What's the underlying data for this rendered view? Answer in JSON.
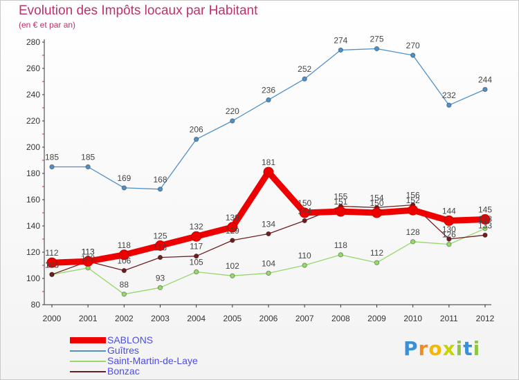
{
  "header": {
    "title": "Evolution des Impôts locaux par Habitant",
    "subtitle": "(en € et par an)"
  },
  "brand": {
    "letters": [
      "P",
      "r",
      "o",
      "x",
      "i",
      "t",
      "i"
    ]
  },
  "chart_data": {
    "type": "line",
    "title": "Evolution des Impôts locaux par Habitant",
    "subtitle": "(en € et par an)",
    "x": [
      "2000",
      "2001",
      "2002",
      "2003",
      "2004",
      "2005",
      "2006",
      "2007",
      "2008",
      "2009",
      "2010",
      "2011",
      "2012"
    ],
    "ylim": [
      80,
      280
    ],
    "yticks": [
      80,
      100,
      120,
      140,
      160,
      180,
      200,
      220,
      240,
      260,
      280
    ],
    "grid": false,
    "legend_position": "bottom-left",
    "series": [
      {
        "name": "SABLONS",
        "color": "#ee0000",
        "values": [
          112,
          113,
          118,
          125,
          132,
          139,
          181,
          150,
          151,
          150,
          152,
          144,
          145
        ]
      },
      {
        "name": "Guîtres",
        "color": "#4f90c8",
        "values": [
          185,
          185,
          169,
          168,
          206,
          220,
          236,
          252,
          274,
          275,
          270,
          232,
          244
        ]
      },
      {
        "name": "Saint-Martin-de-Laye",
        "color": "#96d86a",
        "values": [
          103,
          108,
          88,
          93,
          105,
          102,
          104,
          110,
          118,
          112,
          128,
          126,
          138
        ]
      },
      {
        "name": "Bonzac",
        "color": "#6e1e1e",
        "values": [
          103,
          113,
          106,
          116,
          117,
          129,
          134,
          144,
          155,
          154,
          156,
          130,
          133
        ]
      }
    ]
  }
}
